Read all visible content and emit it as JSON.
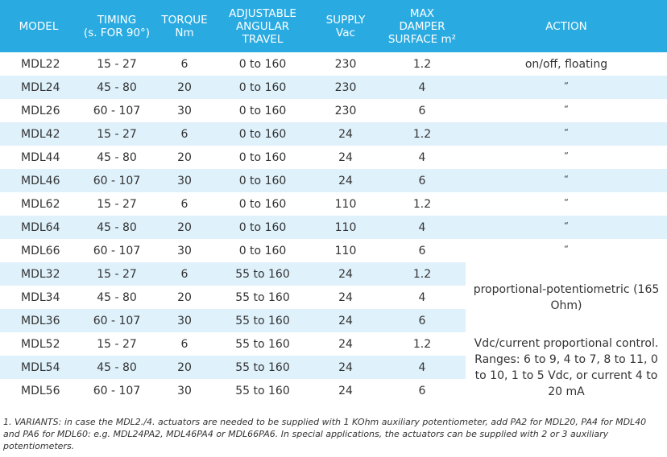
{
  "header": {
    "model": "MODEL",
    "timing_1": "TIMING",
    "timing_2": "(s. FOR 90°)",
    "torque_1": "TORQUE",
    "torque_2": "Nm",
    "travel_1": "ADJUSTABLE",
    "travel_2": "ANGULAR",
    "travel_3": "TRAVEL",
    "supply_1": "SUPPLY",
    "supply_2": "Vac",
    "surface_1": "MAX",
    "surface_2": "DAMPER",
    "surface_3": "SURFACE m²",
    "action": "ACTION"
  },
  "rows": [
    {
      "model": "MDL22",
      "timing": "15 - 27",
      "torque": "6",
      "travel": "0 to 160",
      "supply": "230",
      "surface": "1.2",
      "action": "on/off, floating"
    },
    {
      "model": "MDL24",
      "timing": "45 - 80",
      "torque": "20",
      "travel": "0 to 160",
      "supply": "230",
      "surface": "4",
      "action": "“"
    },
    {
      "model": "MDL26",
      "timing": "60 - 107",
      "torque": "30",
      "travel": "0 to 160",
      "supply": "230",
      "surface": "6",
      "action": "“"
    },
    {
      "model": "MDL42",
      "timing": "15 - 27",
      "torque": "6",
      "travel": "0 to 160",
      "supply": "24",
      "surface": "1.2",
      "action": "“"
    },
    {
      "model": "MDL44",
      "timing": "45 - 80",
      "torque": "20",
      "travel": "0 to 160",
      "supply": "24",
      "surface": "4",
      "action": "“"
    },
    {
      "model": "MDL46",
      "timing": "60 - 107",
      "torque": "30",
      "travel": "0 to 160",
      "supply": "24",
      "surface": "6",
      "action": "“"
    },
    {
      "model": "MDL62",
      "timing": "15 - 27",
      "torque": "6",
      "travel": "0 to 160",
      "supply": "110",
      "surface": "1.2",
      "action": "“"
    },
    {
      "model": "MDL64",
      "timing": "45 - 80",
      "torque": "20",
      "travel": "0 to 160",
      "supply": "110",
      "surface": "4",
      "action": "“"
    },
    {
      "model": "MDL66",
      "timing": "60 - 107",
      "torque": "30",
      "travel": "0 to 160",
      "supply": "110",
      "surface": "6",
      "action": "“"
    },
    {
      "model": "MDL32",
      "timing": "15 - 27",
      "torque": "6",
      "travel": "55 to 160",
      "supply": "24",
      "surface": "1.2"
    },
    {
      "model": "MDL34",
      "timing": "45 - 80",
      "torque": "20",
      "travel": "55 to 160",
      "supply": "24",
      "surface": "4"
    },
    {
      "model": "MDL36",
      "timing": "60 - 107",
      "torque": "30",
      "travel": "55 to 160",
      "supply": "24",
      "surface": "6"
    },
    {
      "model": "MDL52",
      "timing": "15 - 27",
      "torque": "6",
      "travel": "55 to 160",
      "supply": "24",
      "surface": "1.2"
    },
    {
      "model": "MDL54",
      "timing": "45 - 80",
      "torque": "20",
      "travel": "55 to 160",
      "supply": "24",
      "surface": "4"
    },
    {
      "model": "MDL56",
      "timing": "60 - 107",
      "torque": "30",
      "travel": "55 to 160",
      "supply": "24",
      "surface": "6"
    }
  ],
  "merged_actions": {
    "potentiometric": "proportional-potentiometric (165 Ohm)",
    "vdc_current": "Vdc/current proportional control. Ranges: 6 to 9, 4 to 7, 8 to 11, 0 to 10, 1 to 5 Vdc, or current 4 to 20 mA"
  },
  "note": "1. VARIANTS: in case the MDL2./4. actuators are needed to be supplied with 1 KOhm auxiliary potentiometer, add PA2 for MDL20, PA4 for MDL40 and PA6 for MDL60: e.g. MDL24PA2, MDL46PA4 or MDL66PA6. In special applications, the actuators can be supplied with 2 or 3 auxiliary potentiometers."
}
